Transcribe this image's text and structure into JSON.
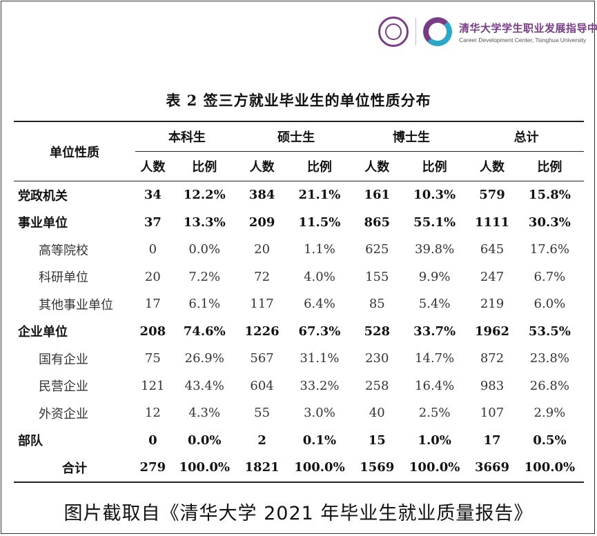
{
  "header": {
    "logo_cn": "清华大学学生职业发展指导中心",
    "logo_en": "Career Development Center, Tsinghua University"
  },
  "table": {
    "title": "表 2 签三方就业毕业生的单位性质分布",
    "category_header": "单位性质",
    "groups": [
      "本科生",
      "硕士生",
      "博士生",
      "总计"
    ],
    "sub_count": "人数",
    "sub_ratio": "比例",
    "rows": [
      {
        "category": "党政机关",
        "kind": "main",
        "values": [
          "34",
          "12.2%",
          "384",
          "21.1%",
          "161",
          "10.3%",
          "579",
          "15.8%"
        ]
      },
      {
        "category": "事业单位",
        "kind": "main",
        "values": [
          "37",
          "13.3%",
          "209",
          "11.5%",
          "865",
          "55.1%",
          "1111",
          "30.3%"
        ]
      },
      {
        "category": "高等院校",
        "kind": "child",
        "values": [
          "0",
          "0.0%",
          "20",
          "1.1%",
          "625",
          "39.8%",
          "645",
          "17.6%"
        ]
      },
      {
        "category": "科研单位",
        "kind": "child",
        "values": [
          "20",
          "7.2%",
          "72",
          "4.0%",
          "155",
          "9.9%",
          "247",
          "6.7%"
        ]
      },
      {
        "category": "其他事业单位",
        "kind": "child",
        "values": [
          "17",
          "6.1%",
          "117",
          "6.4%",
          "85",
          "5.4%",
          "219",
          "6.0%"
        ]
      },
      {
        "category": "企业单位",
        "kind": "main",
        "values": [
          "208",
          "74.6%",
          "1226",
          "67.3%",
          "528",
          "33.7%",
          "1962",
          "53.5%"
        ]
      },
      {
        "category": "国有企业",
        "kind": "child",
        "values": [
          "75",
          "26.9%",
          "567",
          "31.1%",
          "230",
          "14.7%",
          "872",
          "23.8%"
        ]
      },
      {
        "category": "民营企业",
        "kind": "child",
        "values": [
          "121",
          "43.4%",
          "604",
          "33.2%",
          "258",
          "16.4%",
          "983",
          "26.8%"
        ]
      },
      {
        "category": "外资企业",
        "kind": "child",
        "values": [
          "12",
          "4.3%",
          "55",
          "3.0%",
          "40",
          "2.5%",
          "107",
          "2.9%"
        ]
      },
      {
        "category": "部队",
        "kind": "main",
        "values": [
          "0",
          "0.0%",
          "2",
          "0.1%",
          "15",
          "1.0%",
          "17",
          "0.5%"
        ]
      },
      {
        "category": "合计",
        "kind": "total",
        "values": [
          "279",
          "100.0%",
          "1821",
          "100.0%",
          "1569",
          "100.0%",
          "3669",
          "100.0%"
        ]
      }
    ]
  },
  "caption": "图片截取自《清华大学 2021 年毕业生就业质量报告》",
  "colors": {
    "brand_purple": "#7a3b86",
    "brand_cyan": "#2aa7c9"
  }
}
